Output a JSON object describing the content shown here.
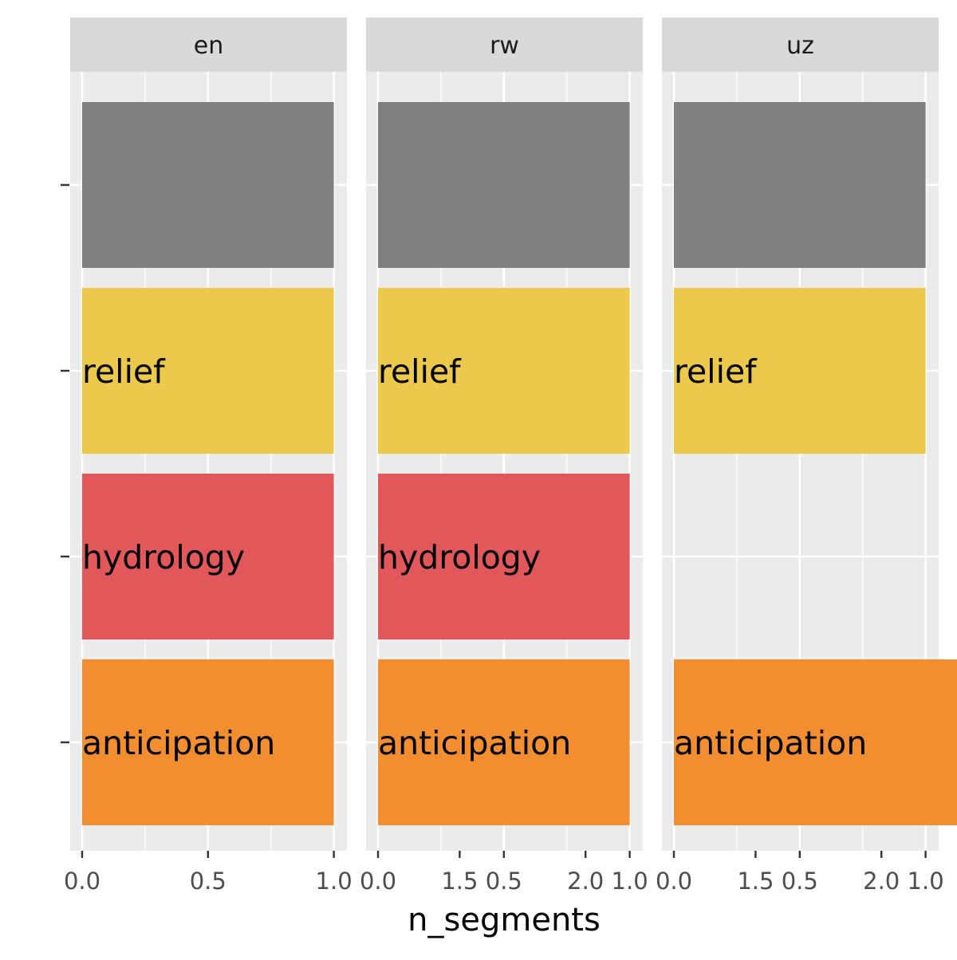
{
  "chart_data": {
    "type": "bar",
    "orientation": "horizontal",
    "xlabel": "n_segments",
    "ylabel": "",
    "xlim": [
      0,
      2
    ],
    "x_ticks": [
      "0.0",
      "0.5",
      "1.0",
      "1.5",
      "2.0"
    ],
    "grid": true,
    "categories": [
      "",
      "relief",
      "hydrology",
      "anticipation"
    ],
    "category_colors": [
      "#808080",
      "#ECC94B",
      "#E1575A",
      "#F28E2F"
    ],
    "facets": [
      {
        "name": "en",
        "values": [
          1,
          1,
          1,
          1
        ]
      },
      {
        "name": "rw",
        "values": [
          1,
          1,
          1,
          1
        ]
      },
      {
        "name": "uz",
        "values": [
          1,
          1,
          0,
          2
        ]
      }
    ]
  }
}
